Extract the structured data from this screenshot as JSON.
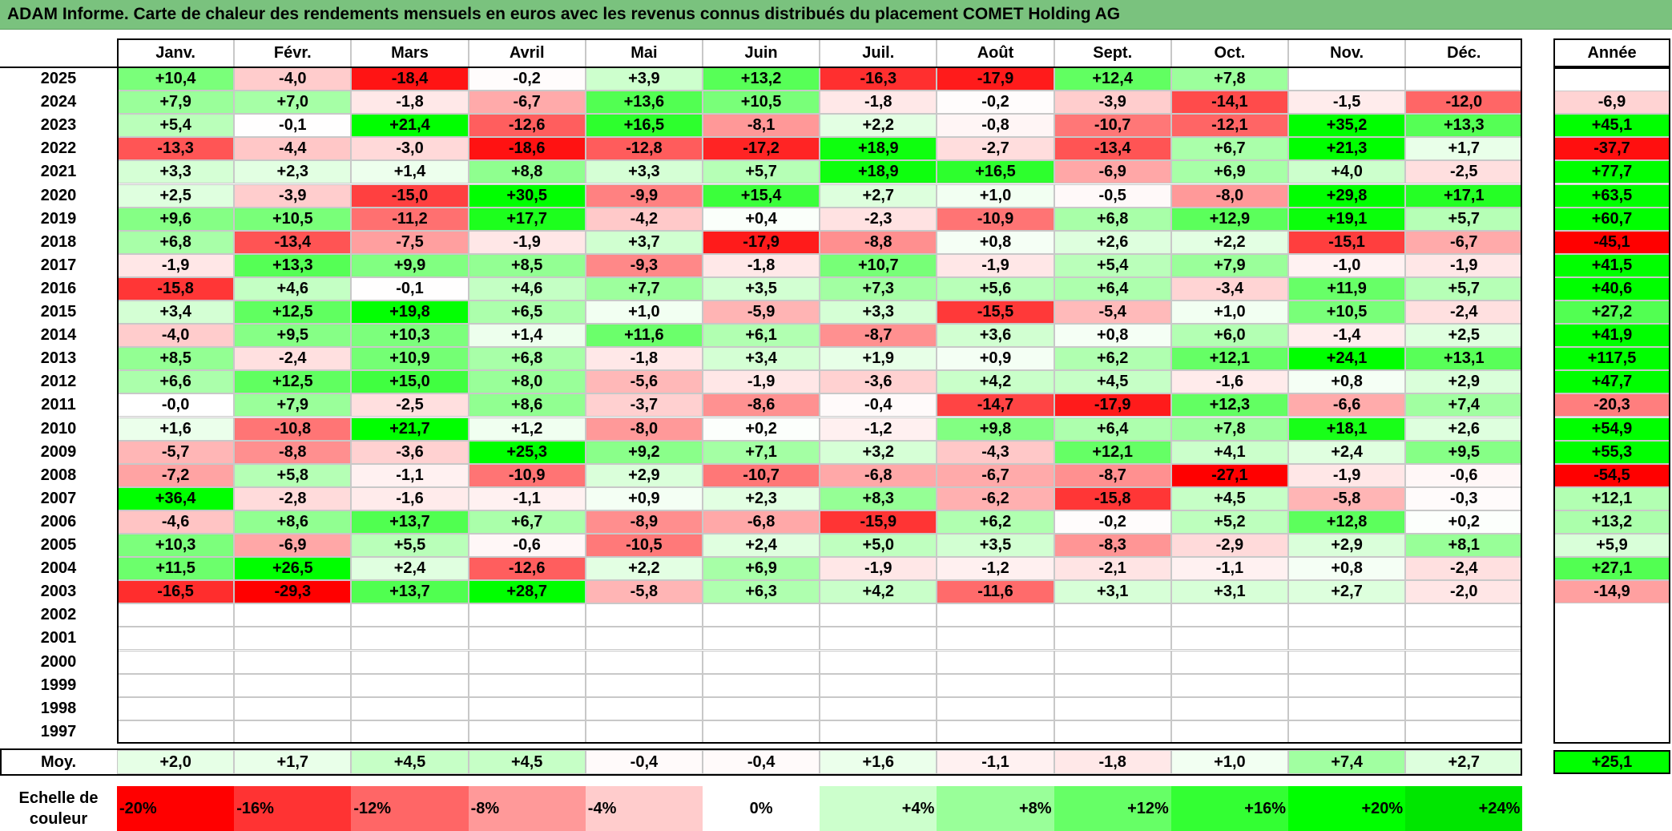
{
  "title": "ADAM Informe. Carte de chaleur des rendements mensuels en euros avec les revenus connus distribués du placement COMET Holding AG",
  "chart_data": {
    "type": "heatmap",
    "title": "ADAM Informe. Carte de chaleur des rendements mensuels en euros avec les revenus connus distribués du placement COMET Holding AG",
    "columns": [
      "Janv.",
      "Févr.",
      "Mars",
      "Avril",
      "Mai",
      "Juin",
      "Juil.",
      "Août",
      "Sept.",
      "Oct.",
      "Nov.",
      "Déc."
    ],
    "year_column_label": "Année",
    "average_label": "Moy.",
    "rows": [
      {
        "year": "2025",
        "values": [
          "+10,4",
          "-4,0",
          "-18,4",
          "-0,2",
          "+3,9",
          "+13,2",
          "-16,3",
          "-17,9",
          "+12,4",
          "+7,8",
          "",
          ""
        ],
        "annual": ""
      },
      {
        "year": "2024",
        "values": [
          "+7,9",
          "+7,0",
          "-1,8",
          "-6,7",
          "+13,6",
          "+10,5",
          "-1,8",
          "-0,2",
          "-3,9",
          "-14,1",
          "-1,5",
          "-12,0"
        ],
        "annual": "-6,9"
      },
      {
        "year": "2023",
        "values": [
          "+5,4",
          "-0,1",
          "+21,4",
          "-12,6",
          "+16,5",
          "-8,1",
          "+2,2",
          "-0,8",
          "-10,7",
          "-12,1",
          "+35,2",
          "+13,3"
        ],
        "annual": "+45,1"
      },
      {
        "year": "2022",
        "values": [
          "-13,3",
          "-4,4",
          "-3,0",
          "-18,6",
          "-12,8",
          "-17,2",
          "+18,9",
          "-2,7",
          "-13,4",
          "+6,7",
          "+21,3",
          "+1,7"
        ],
        "annual": "-37,7"
      },
      {
        "year": "2021",
        "values": [
          "+3,3",
          "+2,3",
          "+1,4",
          "+8,8",
          "+3,3",
          "+5,7",
          "+18,9",
          "+16,5",
          "-6,9",
          "+6,9",
          "+4,0",
          "-2,5"
        ],
        "annual": "+77,7"
      },
      {
        "year": "2020",
        "values": [
          "+2,5",
          "-3,9",
          "-15,0",
          "+30,5",
          "-9,9",
          "+15,4",
          "+2,7",
          "+1,0",
          "-0,5",
          "-8,0",
          "+29,8",
          "+17,1"
        ],
        "annual": "+63,5"
      },
      {
        "year": "2019",
        "values": [
          "+9,6",
          "+10,5",
          "-11,2",
          "+17,7",
          "-4,2",
          "+0,4",
          "-2,3",
          "-10,9",
          "+6,8",
          "+12,9",
          "+19,1",
          "+5,7"
        ],
        "annual": "+60,7"
      },
      {
        "year": "2018",
        "values": [
          "+6,8",
          "-13,4",
          "-7,5",
          "-1,9",
          "+3,7",
          "-17,9",
          "-8,8",
          "+0,8",
          "+2,6",
          "+2,2",
          "-15,1",
          "-6,7"
        ],
        "annual": "-45,1"
      },
      {
        "year": "2017",
        "values": [
          "-1,9",
          "+13,3",
          "+9,9",
          "+8,5",
          "-9,3",
          "-1,8",
          "+10,7",
          "-1,9",
          "+5,4",
          "+7,9",
          "-1,0",
          "-1,9"
        ],
        "annual": "+41,5"
      },
      {
        "year": "2016",
        "values": [
          "-15,8",
          "+4,6",
          "-0,1",
          "+4,6",
          "+7,7",
          "+3,5",
          "+7,3",
          "+5,6",
          "+6,4",
          "-3,4",
          "+11,9",
          "+5,7"
        ],
        "annual": "+40,6"
      },
      {
        "year": "2015",
        "values": [
          "+3,4",
          "+12,5",
          "+19,8",
          "+6,5",
          "+1,0",
          "-5,9",
          "+3,3",
          "-15,5",
          "-5,4",
          "+1,0",
          "+10,5",
          "-2,4"
        ],
        "annual": "+27,2"
      },
      {
        "year": "2014",
        "values": [
          "-4,0",
          "+9,5",
          "+10,3",
          "+1,4",
          "+11,6",
          "+6,1",
          "-8,7",
          "+3,6",
          "+0,8",
          "+6,0",
          "-1,4",
          "+2,5"
        ],
        "annual": "+41,9"
      },
      {
        "year": "2013",
        "values": [
          "+8,5",
          "-2,4",
          "+10,9",
          "+6,8",
          "-1,8",
          "+3,4",
          "+1,9",
          "+0,9",
          "+6,2",
          "+12,1",
          "+24,1",
          "+13,1"
        ],
        "annual": "+117,5"
      },
      {
        "year": "2012",
        "values": [
          "+6,6",
          "+12,5",
          "+15,0",
          "+8,0",
          "-5,6",
          "-1,9",
          "-3,6",
          "+4,2",
          "+4,5",
          "-1,6",
          "+0,8",
          "+2,9"
        ],
        "annual": "+47,7"
      },
      {
        "year": "2011",
        "values": [
          "-0,0",
          "+7,9",
          "-2,5",
          "+8,6",
          "-3,7",
          "-8,6",
          "-0,4",
          "-14,7",
          "-17,9",
          "+12,3",
          "-6,6",
          "+7,4"
        ],
        "annual": "-20,3"
      },
      {
        "year": "2010",
        "values": [
          "+1,6",
          "-10,8",
          "+21,7",
          "+1,2",
          "-8,0",
          "+0,2",
          "-1,2",
          "+9,8",
          "+6,4",
          "+7,8",
          "+18,1",
          "+2,6"
        ],
        "annual": "+54,9"
      },
      {
        "year": "2009",
        "values": [
          "-5,7",
          "-8,8",
          "-3,6",
          "+25,3",
          "+9,2",
          "+7,1",
          "+3,2",
          "-4,3",
          "+12,1",
          "+4,1",
          "+2,4",
          "+9,5"
        ],
        "annual": "+55,3"
      },
      {
        "year": "2008",
        "values": [
          "-7,2",
          "+5,8",
          "-1,1",
          "-10,9",
          "+2,9",
          "-10,7",
          "-6,8",
          "-6,7",
          "-8,7",
          "-27,1",
          "-1,9",
          "-0,6"
        ],
        "annual": "-54,5"
      },
      {
        "year": "2007",
        "values": [
          "+36,4",
          "-2,8",
          "-1,6",
          "-1,1",
          "+0,9",
          "+2,3",
          "+8,3",
          "-6,2",
          "-15,8",
          "+4,5",
          "-5,8",
          "-0,3"
        ],
        "annual": "+12,1"
      },
      {
        "year": "2006",
        "values": [
          "-4,6",
          "+8,6",
          "+13,7",
          "+6,7",
          "-8,9",
          "-6,8",
          "-15,9",
          "+6,2",
          "-0,2",
          "+5,2",
          "+12,8",
          "+0,2"
        ],
        "annual": "+13,2"
      },
      {
        "year": "2005",
        "values": [
          "+10,3",
          "-6,9",
          "+5,5",
          "-0,6",
          "-10,5",
          "+2,4",
          "+5,0",
          "+3,5",
          "-8,3",
          "-2,9",
          "+2,9",
          "+8,1"
        ],
        "annual": "+5,9"
      },
      {
        "year": "2004",
        "values": [
          "+11,5",
          "+26,5",
          "+2,4",
          "-12,6",
          "+2,2",
          "+6,9",
          "-1,9",
          "-1,2",
          "-2,1",
          "-1,1",
          "+0,8",
          "-2,4"
        ],
        "annual": "+27,1"
      },
      {
        "year": "2003",
        "values": [
          "-16,5",
          "-29,3",
          "+13,7",
          "+28,7",
          "-5,8",
          "+6,3",
          "+4,2",
          "-11,6",
          "+3,1",
          "+3,1",
          "+2,7",
          "-2,0"
        ],
        "annual": "-14,9"
      },
      {
        "year": "2002",
        "values": [
          "",
          "",
          "",
          "",
          "",
          "",
          "",
          "",
          "",
          "",
          "",
          ""
        ],
        "annual": ""
      },
      {
        "year": "2001",
        "values": [
          "",
          "",
          "",
          "",
          "",
          "",
          "",
          "",
          "",
          "",
          "",
          ""
        ],
        "annual": ""
      },
      {
        "year": "2000",
        "values": [
          "",
          "",
          "",
          "",
          "",
          "",
          "",
          "",
          "",
          "",
          "",
          ""
        ],
        "annual": ""
      },
      {
        "year": "1999",
        "values": [
          "",
          "",
          "",
          "",
          "",
          "",
          "",
          "",
          "",
          "",
          "",
          ""
        ],
        "annual": ""
      },
      {
        "year": "1998",
        "values": [
          "",
          "",
          "",
          "",
          "",
          "",
          "",
          "",
          "",
          "",
          "",
          ""
        ],
        "annual": ""
      },
      {
        "year": "1997",
        "values": [
          "",
          "",
          "",
          "",
          "",
          "",
          "",
          "",
          "",
          "",
          "",
          ""
        ],
        "annual": ""
      }
    ],
    "averages": [
      "+2,0",
      "+1,7",
      "+4,5",
      "+4,5",
      "-0,4",
      "-0,4",
      "+1,6",
      "-1,1",
      "-1,8",
      "+1,0",
      "+7,4",
      "+2,7"
    ],
    "average_annual": "+25,1",
    "color_scale_label": "Echelle de couleur",
    "color_scale": [
      {
        "label": "-20%",
        "value": -20,
        "color": "#ff0000"
      },
      {
        "label": "-16%",
        "value": -16,
        "color": "#ff3333"
      },
      {
        "label": "-12%",
        "value": -12,
        "color": "#ff6666"
      },
      {
        "label": "-8%",
        "value": -8,
        "color": "#ff9999"
      },
      {
        "label": "-4%",
        "value": -4,
        "color": "#ffcccc"
      },
      {
        "label": "0%",
        "value": 0,
        "color": "#ffffff"
      },
      {
        "label": "+4%",
        "value": 4,
        "color": "#ccffcc"
      },
      {
        "label": "+8%",
        "value": 8,
        "color": "#99ff99"
      },
      {
        "label": "+12%",
        "value": 12,
        "color": "#66ff66"
      },
      {
        "label": "+16%",
        "value": 16,
        "color": "#33ff33"
      },
      {
        "label": "+20%",
        "value": 20,
        "color": "#00ff00"
      },
      {
        "label": "+24%",
        "value": 24,
        "color": "#00e600"
      }
    ],
    "annual_color_scale_max": 40
  }
}
